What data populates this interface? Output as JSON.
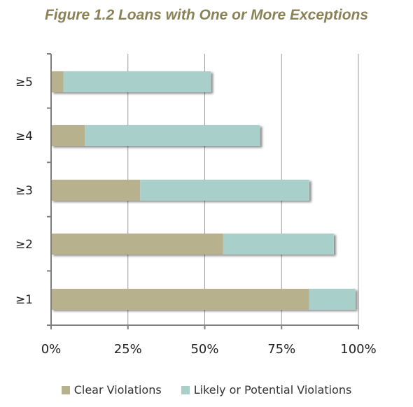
{
  "colors": {
    "clear": "#b7b18d",
    "likely": "#a9cfcb",
    "title": "#8a8257",
    "grid": "#9a9a9a",
    "axis": "#7f7f7f"
  },
  "chart_data": {
    "type": "bar",
    "orientation": "horizontal",
    "stacked": true,
    "title": "Figure 1.2 Loans with One or More Exceptions",
    "xlabel": "",
    "ylabel": "",
    "categories": [
      "≥1",
      "≥2",
      "≥3",
      "≥4",
      "≥5"
    ],
    "series": [
      {
        "name": "Clear Violations",
        "values": [
          84,
          56,
          29,
          11,
          4
        ]
      },
      {
        "name": "Likely or Potential Violations",
        "values": [
          15,
          36,
          55,
          57,
          48
        ]
      }
    ],
    "xlim": [
      0,
      100
    ],
    "xticks": [
      "0%",
      "25%",
      "50%",
      "75%",
      "100%"
    ],
    "grid": true,
    "legend_position": "bottom"
  }
}
